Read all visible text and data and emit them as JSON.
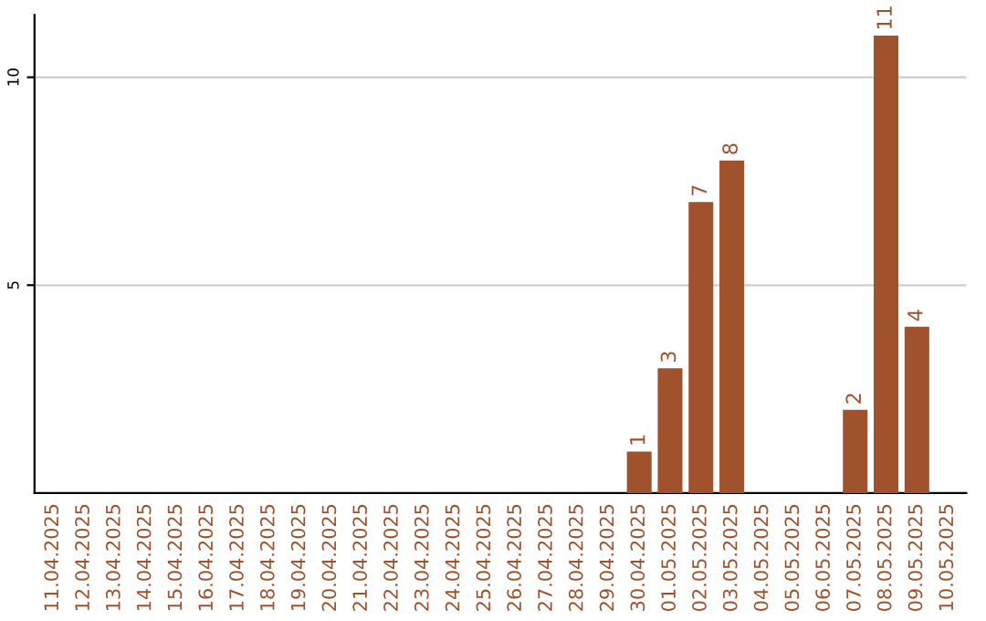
{
  "chart_data": {
    "type": "bar",
    "categories": [
      "11.04.2025",
      "12.04.2025",
      "13.04.2025",
      "14.04.2025",
      "15.04.2025",
      "16.04.2025",
      "17.04.2025",
      "18.04.2025",
      "19.04.2025",
      "20.04.2025",
      "21.04.2025",
      "22.04.2025",
      "23.04.2025",
      "24.04.2025",
      "25.04.2025",
      "26.04.2025",
      "27.04.2025",
      "28.04.2025",
      "29.04.2025",
      "30.04.2025",
      "01.05.2025",
      "02.05.2025",
      "03.05.2025",
      "04.05.2025",
      "05.05.2025",
      "06.05.2025",
      "07.05.2025",
      "08.05.2025",
      "09.05.2025",
      "10.05.2025"
    ],
    "values": [
      0,
      0,
      0,
      0,
      0,
      0,
      0,
      0,
      0,
      0,
      0,
      0,
      0,
      0,
      0,
      0,
      0,
      0,
      0,
      1,
      3,
      7,
      8,
      0,
      0,
      0,
      2,
      11,
      4,
      0
    ],
    "value_labels": [
      null,
      null,
      null,
      null,
      null,
      null,
      null,
      null,
      null,
      null,
      null,
      null,
      null,
      null,
      null,
      null,
      null,
      null,
      null,
      "1",
      "3",
      "7",
      "8",
      null,
      null,
      null,
      "2",
      "11",
      "4",
      null
    ],
    "color": "#a0522d",
    "ylim": [
      0,
      11.5
    ],
    "yticks": [
      5,
      10
    ],
    "grid": "y"
  }
}
